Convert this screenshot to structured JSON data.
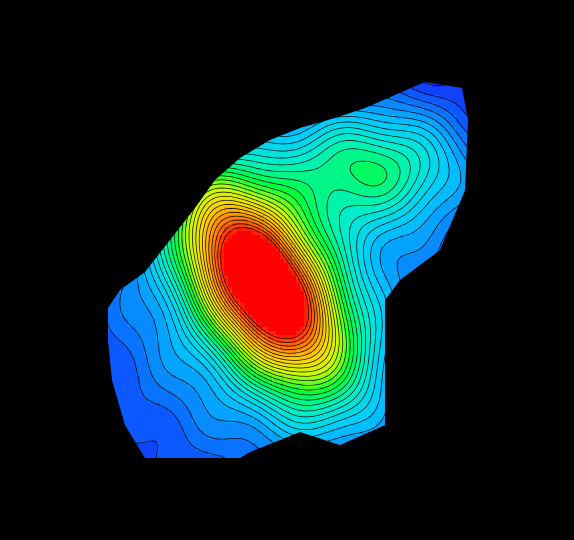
{
  "colors": {
    "background": "#000000",
    "contour_line": "#000000",
    "colormap": [
      "#1414ff",
      "#0a6cff",
      "#00c8ff",
      "#00f0c8",
      "#00ff3c",
      "#c8ff00",
      "#ffd200",
      "#ff7800",
      "#ff0000"
    ]
  },
  "chart_data": {
    "type": "heatmap",
    "subtype": "filled-contour",
    "title": "",
    "xlabel": "",
    "ylabel": "",
    "grid": false,
    "legend": "none",
    "axes_visible": false,
    "x": [
      0,
      1,
      2,
      3,
      4,
      5,
      6,
      7,
      8,
      9,
      10,
      11,
      12,
      13,
      14,
      15,
      16,
      17,
      18,
      19,
      20,
      21,
      22,
      23,
      24,
      25,
      26,
      27,
      28,
      29,
      30
    ],
    "y": [
      0,
      1,
      2,
      3,
      4,
      5,
      6,
      7,
      8,
      9,
      10,
      11,
      12,
      13,
      14,
      15,
      16,
      17,
      18,
      19,
      20,
      21,
      22,
      23,
      24,
      25,
      26,
      27,
      28,
      29,
      30
    ],
    "z_range": [
      0,
      1
    ],
    "contour_levels": 30,
    "peak": {
      "x": 13,
      "y": 16,
      "z": 1.0
    }
  }
}
